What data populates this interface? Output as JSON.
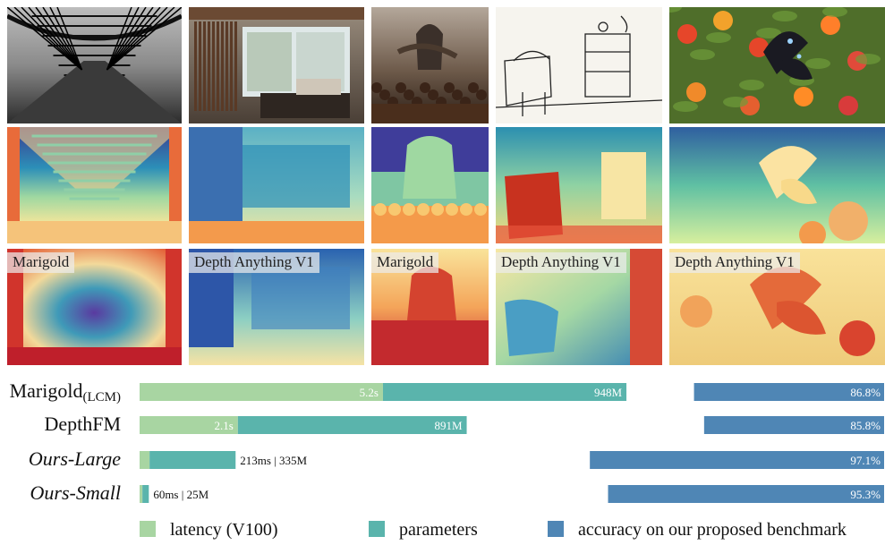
{
  "grid": {
    "rows": [
      {
        "row": "input images",
        "tiles": [
          {
            "icon": "photo-bridge-bw"
          },
          {
            "icon": "photo-interior-room"
          },
          {
            "icon": "photo-fantasy-army-dragon"
          },
          {
            "icon": "photo-line-sketch-room"
          },
          {
            "icon": "photo-butterfly-flowers"
          }
        ]
      },
      {
        "row": "our depth predictions",
        "tiles": [
          {
            "icon": "depth-bridge"
          },
          {
            "icon": "depth-interior-room"
          },
          {
            "icon": "depth-fantasy-army"
          },
          {
            "icon": "depth-sketch-room"
          },
          {
            "icon": "depth-butterfly"
          }
        ]
      },
      {
        "row": "baseline depth predictions",
        "tiles": [
          {
            "icon": "depth-bridge-baseline",
            "label": "Marigold"
          },
          {
            "icon": "depth-interior-baseline",
            "label": "Depth Anything V1"
          },
          {
            "icon": "depth-fantasy-baseline",
            "label": "Marigold"
          },
          {
            "icon": "depth-sketch-baseline",
            "label": "Depth Anything V1"
          },
          {
            "icon": "depth-butterfly-baseline",
            "label": "Depth Anything V1"
          }
        ]
      }
    ]
  },
  "chart_data": {
    "type": "bar",
    "categories": [
      "Marigold(LCM)",
      "DepthFM",
      "Ours-Large",
      "Ours-Small"
    ],
    "category_display": [
      {
        "main": "Marigold",
        "sub": "(LCM)",
        "italic": false
      },
      {
        "main": "DepthFM",
        "sub": "",
        "italic": false
      },
      {
        "main": "Ours-Large",
        "sub": "",
        "italic": true
      },
      {
        "main": "Ours-Small",
        "sub": "",
        "italic": true
      }
    ],
    "series": [
      {
        "name": "latency (V100)",
        "color": "#a8d5a2",
        "values_ms": [
          5200,
          2100,
          213,
          60
        ],
        "labels": [
          "5.2s",
          "2.1s",
          "",
          ""
        ]
      },
      {
        "name": "parameters",
        "color": "#5ab4ac",
        "values_M": [
          948,
          891,
          335,
          25
        ],
        "labels": [
          "948M",
          "891M",
          "",
          ""
        ]
      },
      {
        "name": "accuracy on our proposed benchmark",
        "color": "#4f86b5",
        "values_pct": [
          86.8,
          85.8,
          97.1,
          95.3
        ],
        "labels": [
          "86.8%",
          "85.8%",
          "97.1%",
          "95.3%"
        ]
      }
    ],
    "outside_labels": [
      "",
      "",
      "213ms | 335M",
      "60ms | 25M"
    ],
    "legend_position": "bottom",
    "grid": false
  }
}
